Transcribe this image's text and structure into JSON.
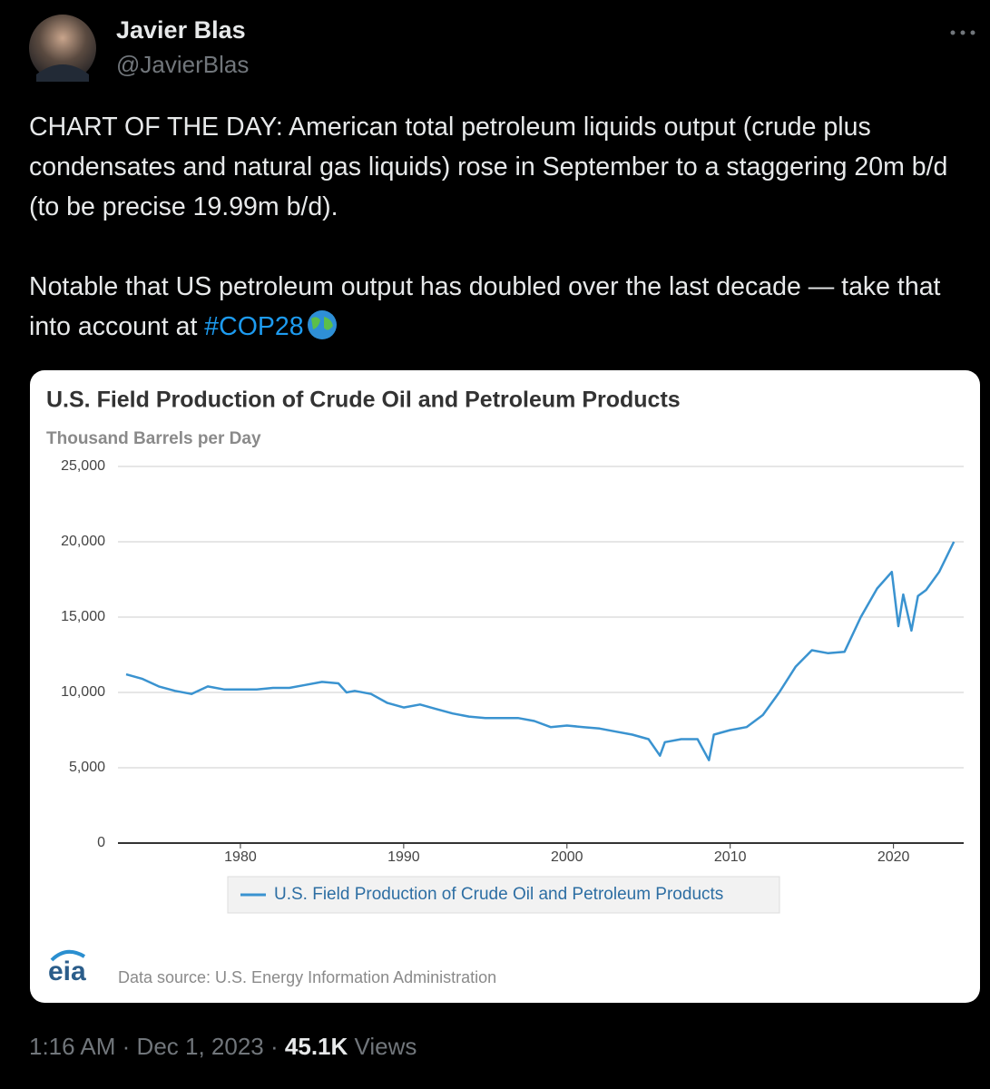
{
  "author": {
    "name": "Javier Blas",
    "handle": "@JavierBlas"
  },
  "text": {
    "paragraphs": [
      "CHART OF THE DAY: American total petroleum liquids output (crude plus condensates and natural gas liquids) rose in September to a staggering 20m b/d (to be precise 19.99m b/d).",
      "Notable that US petroleum output has doubled over the last decade — take that into account at "
    ],
    "hashtag": "#COP28"
  },
  "footer": {
    "time": "1:16 AM",
    "separator": "·",
    "date": "Dec 1, 2023",
    "views_count": "45.1K",
    "views_label": "Views"
  },
  "chart_data": {
    "type": "line",
    "title": "U.S. Field Production of Crude Oil and Petroleum Products",
    "ylabel": "Thousand Barrels per Day",
    "source": "Data source: U.S. Energy Information Administration",
    "logo": "eia",
    "x": [
      1973,
      1974,
      1975,
      1976,
      1977,
      1978,
      1979,
      1980,
      1981,
      1982,
      1983,
      1984,
      1985,
      1986,
      1986.5,
      1987,
      1988,
      1989,
      1990,
      1991,
      1992,
      1993,
      1994,
      1995,
      1996,
      1997,
      1998,
      1999,
      2000,
      2001,
      2002,
      2003,
      2004,
      2005,
      2005.7,
      2006,
      2007,
      2008,
      2008.7,
      2009,
      2010,
      2011,
      2012,
      2013,
      2014,
      2015,
      2016,
      2017,
      2018,
      2019,
      2019.9,
      2020.3,
      2020.6,
      2021.1,
      2021.5,
      2022,
      2022.8,
      2023.7
    ],
    "series": [
      {
        "name": "U.S. Field Production of Crude Oil and Petroleum Products",
        "color": "#3a93d0",
        "values": [
          11200,
          10900,
          10400,
          10100,
          9900,
          10400,
          10200,
          10200,
          10200,
          10300,
          10300,
          10500,
          10700,
          10600,
          10000,
          10100,
          9900,
          9300,
          9000,
          9200,
          8900,
          8600,
          8400,
          8300,
          8300,
          8300,
          8100,
          7700,
          7800,
          7700,
          7600,
          7400,
          7200,
          6900,
          5800,
          6700,
          6900,
          6900,
          5500,
          7200,
          7500,
          7700,
          8500,
          10000,
          11700,
          12800,
          12600,
          12700,
          15000,
          16900,
          18000,
          14400,
          16500,
          14100,
          16400,
          16800,
          18000,
          20000
        ]
      }
    ],
    "xlim": [
      1972.5,
      2024.3
    ],
    "xticks": [
      1980,
      1990,
      2000,
      2010,
      2020
    ],
    "ylim": [
      0,
      25000
    ],
    "yticks": [
      0,
      {
        "value": 5000,
        "label": "5,000"
      },
      {
        "value": 10000,
        "label": "10,000"
      },
      {
        "value": 15000,
        "label": "15,000"
      },
      {
        "value": 20000,
        "label": "20,000"
      },
      {
        "value": 25000,
        "label": "25,000"
      }
    ],
    "grid": true,
    "legend": "bottom"
  }
}
